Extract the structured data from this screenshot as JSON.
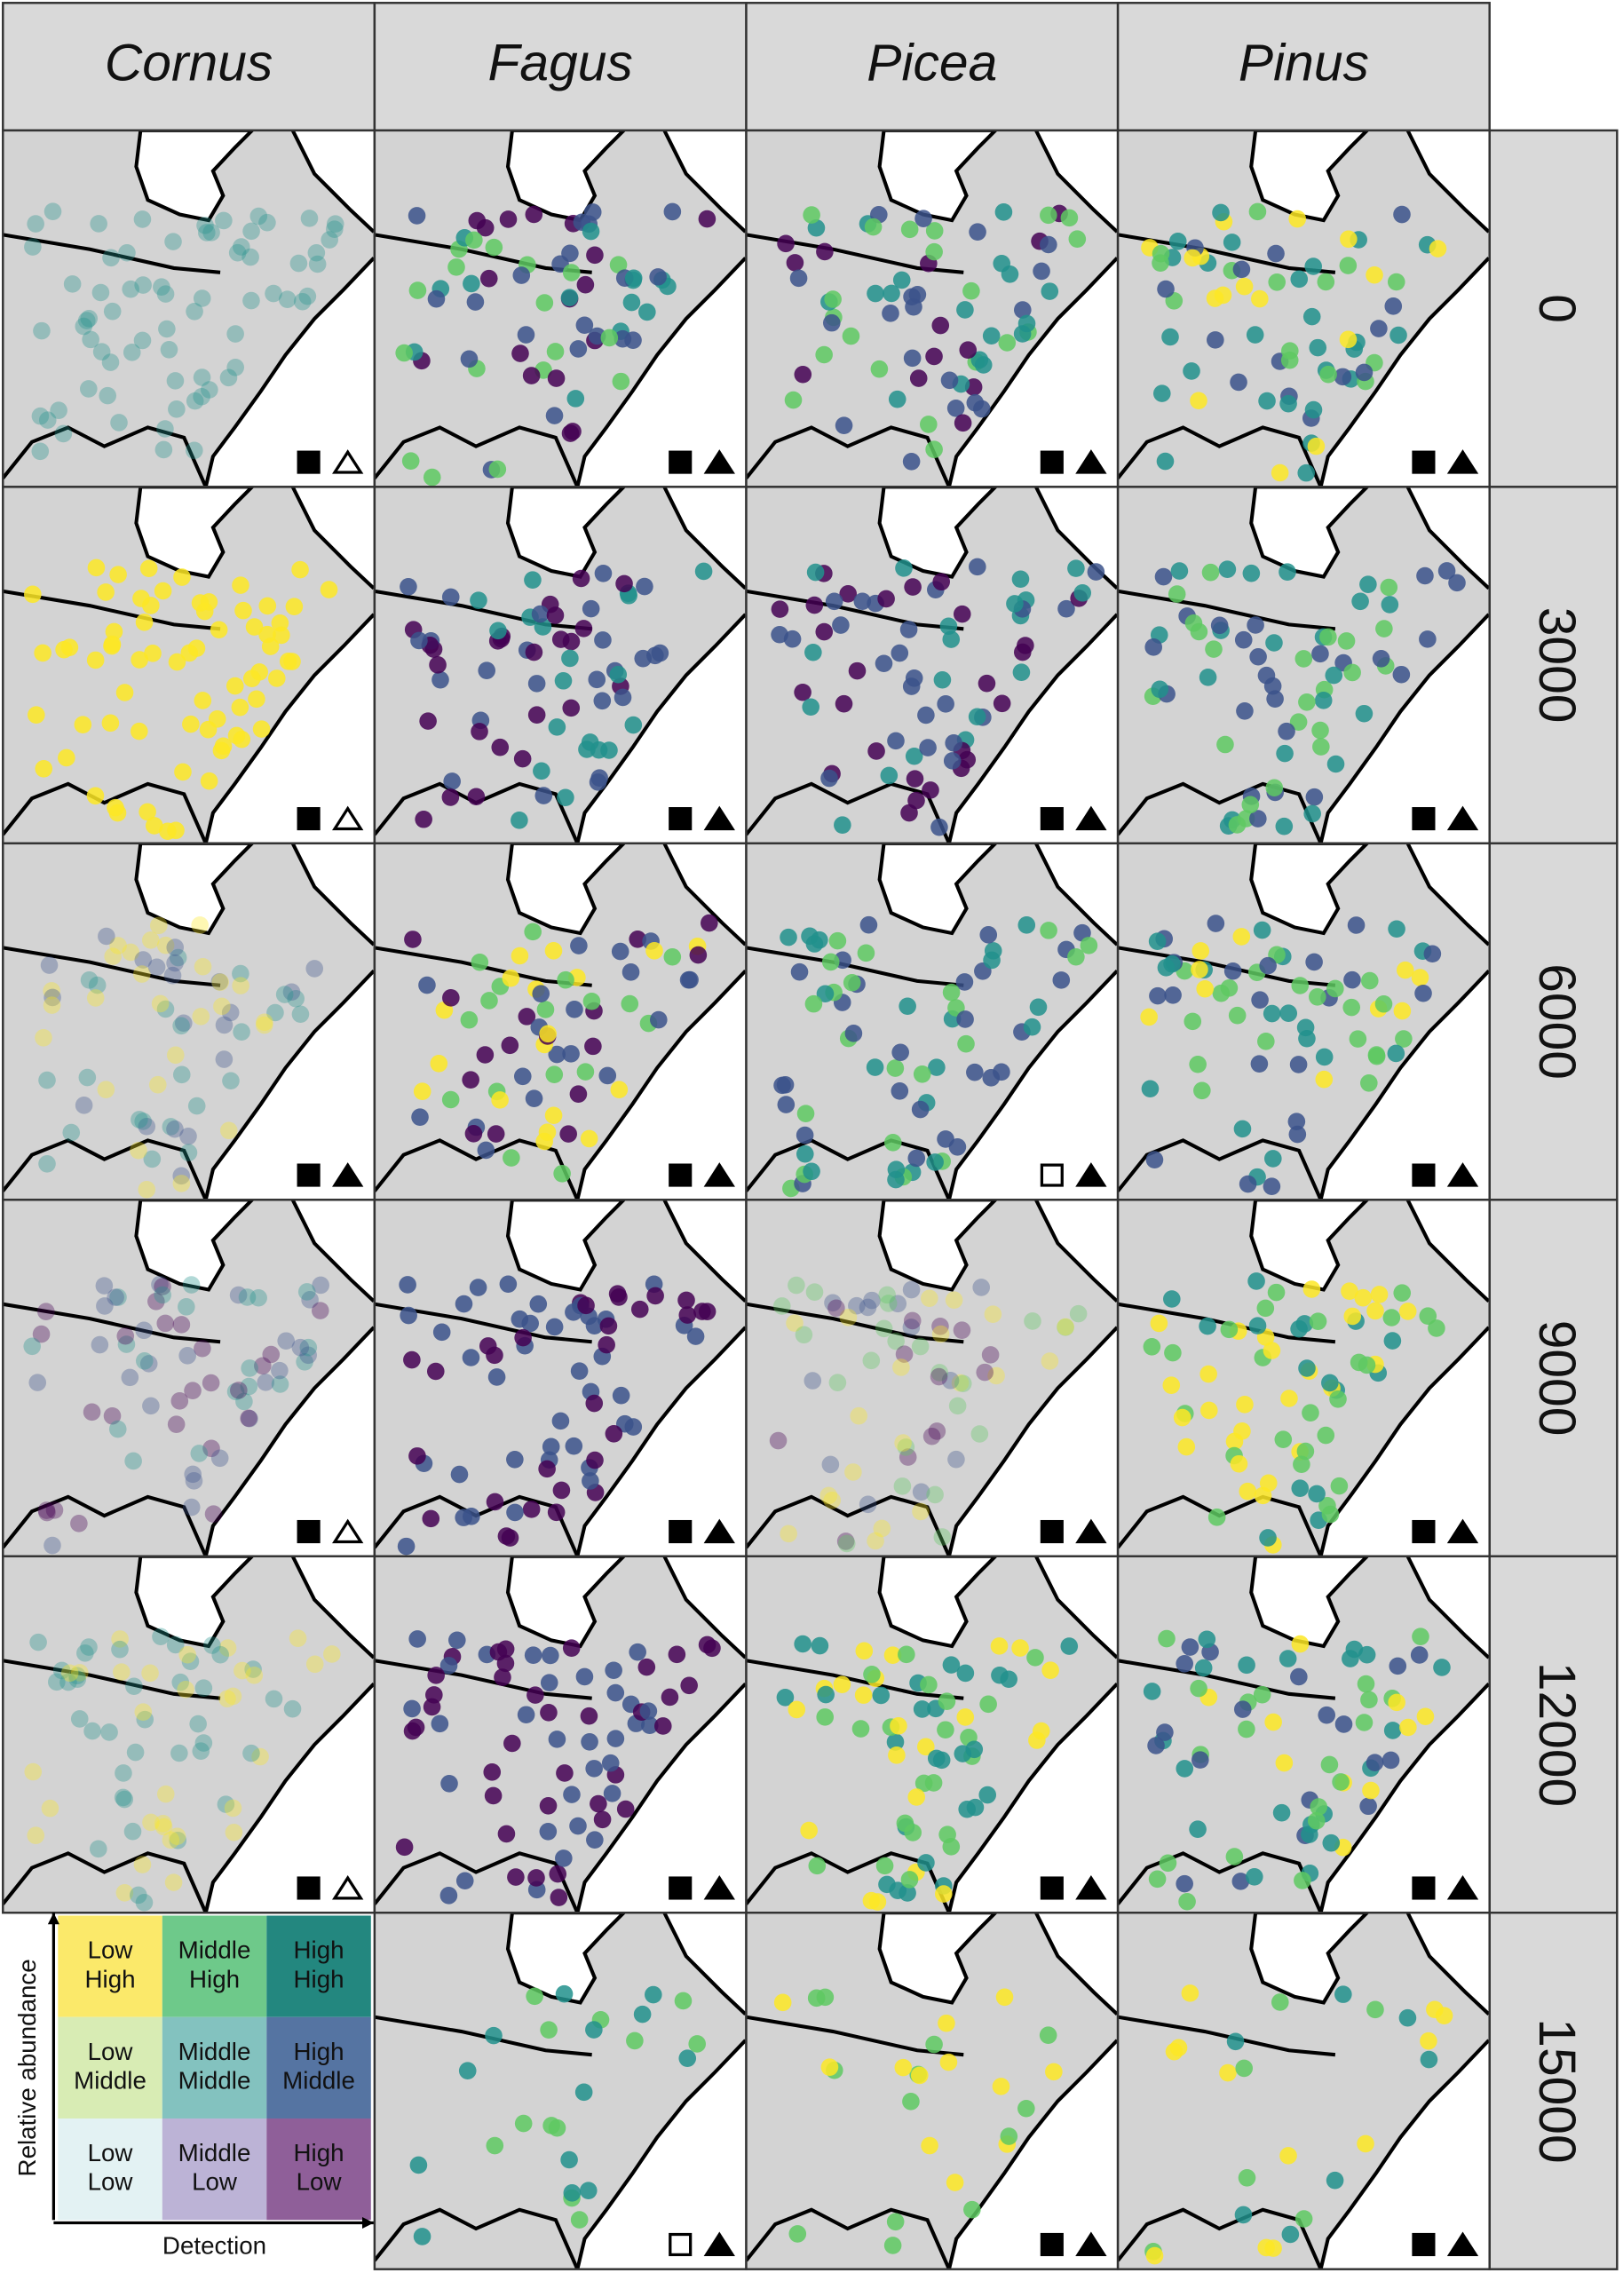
{
  "columns": [
    "Cornus",
    "Fagus",
    "Picea",
    "Pinus"
  ],
  "rows": [
    "0",
    "3000",
    "6000",
    "9000",
    "12000",
    "15000"
  ],
  "legend": {
    "y_label": "Relative abundance",
    "x_label": "Detection",
    "cells": [
      [
        [
          "Low",
          "High"
        ],
        [
          "Middle",
          "High"
        ],
        [
          "High",
          "High"
        ]
      ],
      [
        [
          "Low",
          "Middle"
        ],
        [
          "Middle",
          "Middle"
        ],
        [
          "High",
          "Middle"
        ]
      ],
      [
        [
          "Low",
          "Low"
        ],
        [
          "Middle",
          "Low"
        ],
        [
          "High",
          "Low"
        ]
      ]
    ]
  }
}
